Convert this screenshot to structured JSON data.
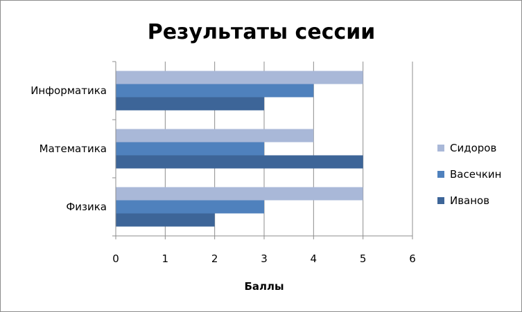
{
  "chart_data": {
    "type": "bar",
    "orientation": "horizontal",
    "title": "Результаты сессии",
    "xlabel": "Баллы",
    "ylabel": "",
    "categories": [
      "Информатика",
      "Математика",
      "Физика"
    ],
    "series": [
      {
        "name": "Сидоров",
        "color": "#a9b8d8",
        "values": [
          5,
          4,
          5
        ]
      },
      {
        "name": "Васечкин",
        "color": "#4f81bd",
        "values": [
          4,
          3,
          3
        ]
      },
      {
        "name": "Иванов",
        "color": "#3d6598",
        "values": [
          3,
          5,
          2
        ]
      }
    ],
    "xlim": [
      0,
      6
    ],
    "xticks": [
      "0",
      "1",
      "2",
      "3",
      "4",
      "5",
      "6"
    ],
    "grid": "vertical",
    "legend_position": "right"
  }
}
